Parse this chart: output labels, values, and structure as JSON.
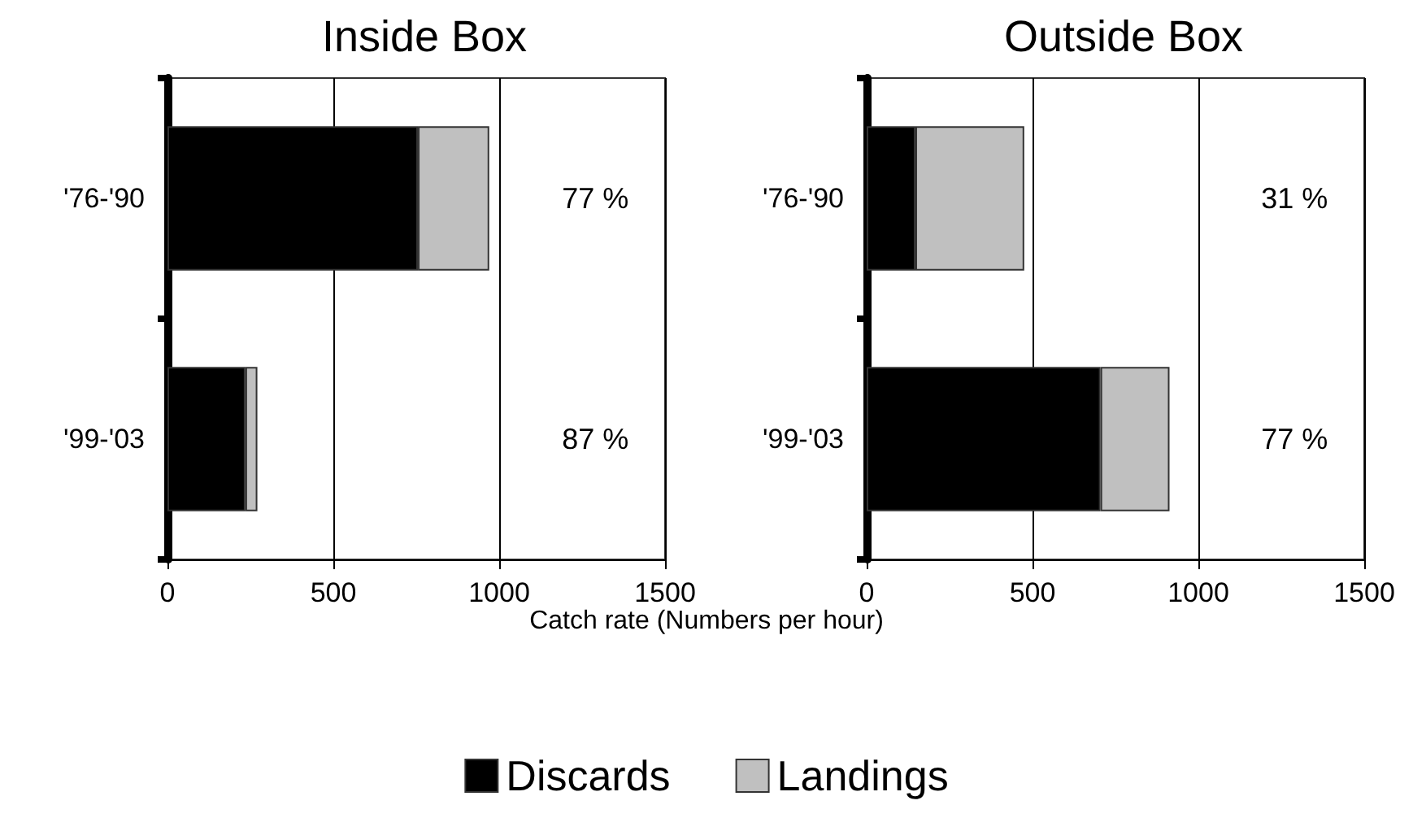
{
  "chart_data": [
    {
      "type": "bar",
      "title": "Inside Box",
      "orientation": "horizontal",
      "stacked": true,
      "categories": [
        "'76-'90",
        "'99-'03"
      ],
      "xlabel": "Catch rate (Numbers per hour)",
      "xlim": [
        0,
        1500
      ],
      "xticks": [
        0,
        500,
        1000,
        1500
      ],
      "grid": "x",
      "legend": "bottom",
      "series": [
        {
          "name": "Discards",
          "color": "#000000",
          "values": [
            755,
            235
          ]
        },
        {
          "name": "Landings",
          "color": "#c0c0c0",
          "values": [
            215,
            36
          ]
        }
      ],
      "annotations": [
        "77 %",
        "87 %"
      ]
    },
    {
      "type": "bar",
      "title": "Outside Box",
      "orientation": "horizontal",
      "stacked": true,
      "categories": [
        "'76-'90",
        "'99-'03"
      ],
      "xlim": [
        0,
        1500
      ],
      "xticks": [
        0,
        500,
        1000,
        1500
      ],
      "grid": "x",
      "series": [
        {
          "color": "#000000",
          "values": [
            147,
            705
          ]
        },
        {
          "color": "#c0c0c0",
          "values": [
            328,
            208
          ]
        }
      ],
      "annotations": [
        "31 %",
        "77 %"
      ]
    }
  ]
}
